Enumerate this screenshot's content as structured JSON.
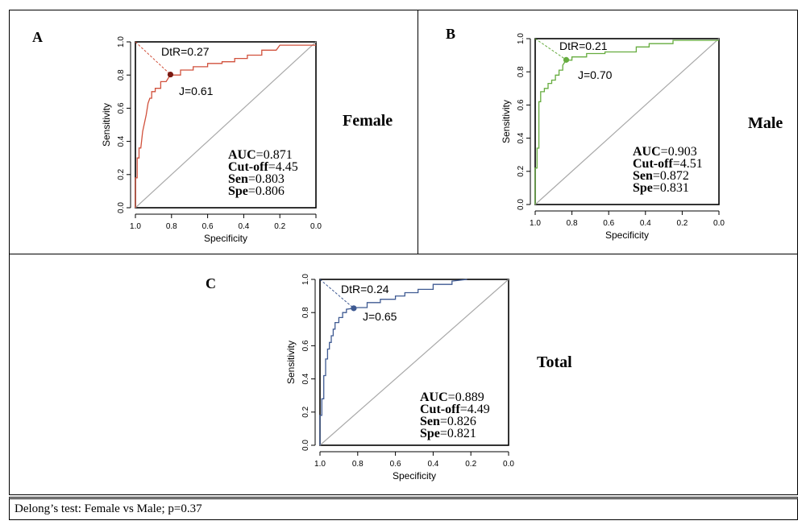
{
  "footer": {
    "text": "Delong’s test: Female vs Male; p=0.37"
  },
  "colors": {
    "female": "#d1513c",
    "male": "#66ac3f",
    "total": "#3f5a92",
    "diagonal": "#a9a9a9"
  },
  "chart_data": [
    {
      "type": "line",
      "panel_label": "A",
      "group_label": "Female",
      "xlabel": "Specificity",
      "ylabel": "Sensitivity",
      "xlim": [
        1.0,
        0.0
      ],
      "ylim": [
        0.0,
        1.0
      ],
      "x_ticks": [
        "1.0",
        "0.8",
        "0.6",
        "0.4",
        "0.2",
        "0.0"
      ],
      "y_ticks": [
        "0.0",
        "0.2",
        "0.4",
        "0.6",
        "0.8",
        "1.0"
      ],
      "color": "#d1513c",
      "curve": {
        "x": [
          1.0,
          1.0,
          0.99,
          0.99,
          0.98,
          0.98,
          0.97,
          0.96,
          0.96,
          0.94,
          0.94,
          0.93,
          0.93,
          0.92,
          0.91,
          0.91,
          0.89,
          0.89,
          0.86,
          0.86,
          0.83,
          0.806,
          0.8,
          0.75,
          0.75,
          0.68,
          0.68,
          0.6,
          0.6,
          0.52,
          0.52,
          0.45,
          0.45,
          0.38,
          0.38,
          0.3,
          0.3,
          0.22,
          0.2,
          0.0
        ],
        "y": [
          0.0,
          0.18,
          0.18,
          0.3,
          0.3,
          0.36,
          0.36,
          0.46,
          0.46,
          0.56,
          0.56,
          0.63,
          0.63,
          0.66,
          0.66,
          0.7,
          0.7,
          0.72,
          0.72,
          0.76,
          0.76,
          0.803,
          0.8,
          0.8,
          0.83,
          0.83,
          0.85,
          0.85,
          0.87,
          0.87,
          0.88,
          0.88,
          0.9,
          0.9,
          0.92,
          0.92,
          0.95,
          0.95,
          0.98,
          0.98
        ]
      },
      "point": {
        "x": 0.806,
        "y": 0.803
      },
      "dtr_label": "DtR=0.27",
      "j_label": "J=0.61",
      "stats": [
        {
          "key": "AUC",
          "value": "=0.871"
        },
        {
          "key": "Cut-off",
          "value": "=4.45"
        },
        {
          "key": "Sen",
          "value": "=0.803"
        },
        {
          "key": "Spe",
          "value": "=0.806"
        }
      ]
    },
    {
      "type": "line",
      "panel_label": "B",
      "group_label": "Male",
      "xlabel": "Specificity",
      "ylabel": "Sensitivity",
      "xlim": [
        1.0,
        0.0
      ],
      "ylim": [
        0.0,
        1.0
      ],
      "x_ticks": [
        "1.0",
        "0.8",
        "0.6",
        "0.4",
        "0.2",
        "0.0"
      ],
      "y_ticks": [
        "0.0",
        "0.2",
        "0.4",
        "0.6",
        "0.8",
        "1.0"
      ],
      "color": "#66ac3f",
      "curve": {
        "x": [
          1.0,
          1.0,
          0.99,
          0.99,
          0.98,
          0.98,
          0.97,
          0.97,
          0.95,
          0.95,
          0.93,
          0.93,
          0.91,
          0.91,
          0.89,
          0.89,
          0.87,
          0.87,
          0.85,
          0.85,
          0.831,
          0.8,
          0.8,
          0.72,
          0.72,
          0.62,
          0.62,
          0.45,
          0.45,
          0.38,
          0.38,
          0.25,
          0.25,
          0.0
        ],
        "y": [
          0.0,
          0.22,
          0.22,
          0.34,
          0.34,
          0.62,
          0.62,
          0.68,
          0.68,
          0.7,
          0.7,
          0.73,
          0.73,
          0.75,
          0.75,
          0.78,
          0.78,
          0.81,
          0.81,
          0.84,
          0.872,
          0.87,
          0.89,
          0.89,
          0.91,
          0.91,
          0.92,
          0.92,
          0.95,
          0.95,
          0.97,
          0.97,
          0.99,
          0.99
        ]
      },
      "point": {
        "x": 0.831,
        "y": 0.872
      },
      "dtr_label": "DtR=0.21",
      "j_label": "J=0.70",
      "stats": [
        {
          "key": "AUC",
          "value": "=0.903"
        },
        {
          "key": "Cut-off",
          "value": "=4.51"
        },
        {
          "key": "Sen",
          "value": "=0.872"
        },
        {
          "key": "Spe",
          "value": "=0.831"
        }
      ]
    },
    {
      "type": "line",
      "panel_label": "C",
      "group_label": "Total",
      "xlabel": "Specificity",
      "ylabel": "Sensitivity",
      "xlim": [
        1.0,
        0.0
      ],
      "ylim": [
        0.0,
        1.0
      ],
      "x_ticks": [
        "1.0",
        "0.8",
        "0.6",
        "0.4",
        "0.2",
        "0.0"
      ],
      "y_ticks": [
        "0.0",
        "0.2",
        "0.4",
        "0.6",
        "0.8",
        "1.0"
      ],
      "color": "#3f5a92",
      "curve": {
        "x": [
          1.0,
          1.0,
          0.99,
          0.99,
          0.98,
          0.98,
          0.97,
          0.97,
          0.96,
          0.96,
          0.95,
          0.95,
          0.94,
          0.94,
          0.93,
          0.93,
          0.92,
          0.92,
          0.9,
          0.9,
          0.88,
          0.88,
          0.86,
          0.86,
          0.821,
          0.8,
          0.75,
          0.75,
          0.68,
          0.68,
          0.6,
          0.6,
          0.55,
          0.55,
          0.48,
          0.48,
          0.4,
          0.4,
          0.3,
          0.3,
          0.22
        ],
        "y": [
          0.0,
          0.18,
          0.18,
          0.28,
          0.28,
          0.42,
          0.42,
          0.52,
          0.52,
          0.58,
          0.58,
          0.62,
          0.62,
          0.66,
          0.66,
          0.7,
          0.7,
          0.74,
          0.74,
          0.77,
          0.77,
          0.8,
          0.8,
          0.82,
          0.826,
          0.83,
          0.83,
          0.86,
          0.86,
          0.88,
          0.88,
          0.9,
          0.9,
          0.92,
          0.92,
          0.94,
          0.94,
          0.97,
          0.97,
          0.99,
          1.0
        ]
      },
      "point": {
        "x": 0.821,
        "y": 0.826
      },
      "dtr_label": "DtR=0.24",
      "j_label": "J=0.65",
      "stats": [
        {
          "key": "AUC",
          "value": "=0.889"
        },
        {
          "key": "Cut-off",
          "value": "=4.49"
        },
        {
          "key": "Sen",
          "value": "=0.826"
        },
        {
          "key": "Spe",
          "value": "=0.821"
        }
      ]
    }
  ]
}
